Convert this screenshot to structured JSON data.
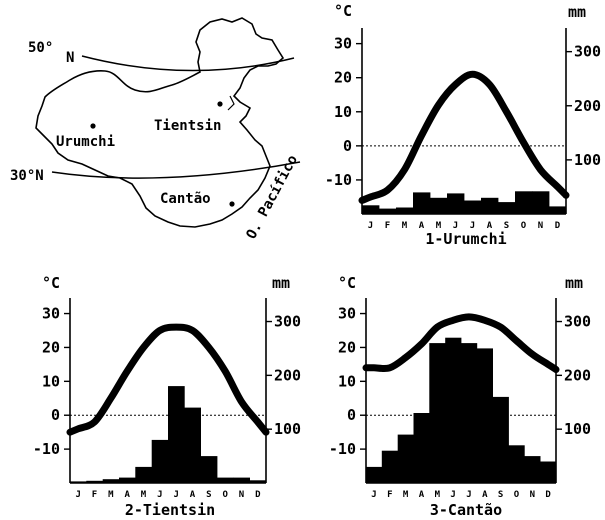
{
  "map": {
    "lat_north": "50°",
    "lat_north_n": "N",
    "lat_south": "30°N",
    "ocean": "O. Pacífico",
    "cities": [
      {
        "name": "Urumchi"
      },
      {
        "name": "Tientsin"
      },
      {
        "name": "Cantão"
      }
    ]
  },
  "chart_data": [
    {
      "type": "bar",
      "title": "1-Urumchi",
      "temp_unit": "°C",
      "precip_unit": "mm",
      "categories": [
        "J",
        "F",
        "M",
        "A",
        "M",
        "J",
        "J",
        "A",
        "S",
        "O",
        "N",
        "D"
      ],
      "temp_ticks": [
        30,
        20,
        10,
        0,
        -10
      ],
      "precip_ticks": [
        300,
        200,
        100
      ],
      "temp_range": [
        -20,
        34
      ],
      "precip_range": [
        0,
        340
      ],
      "temperature": [
        -15,
        -13,
        -7,
        3,
        12,
        18,
        21,
        18,
        10,
        1,
        -7,
        -12
      ],
      "precipitation": [
        16,
        10,
        12,
        40,
        30,
        38,
        25,
        30,
        22,
        42,
        42,
        14
      ]
    },
    {
      "type": "bar",
      "title": "2-Tientsin",
      "temp_unit": "°C",
      "precip_unit": "mm",
      "categories": [
        "J",
        "F",
        "M",
        "A",
        "M",
        "J",
        "J",
        "A",
        "S",
        "O",
        "N",
        "D"
      ],
      "temp_ticks": [
        30,
        20,
        10,
        0,
        -10
      ],
      "precip_ticks": [
        300,
        200,
        100
      ],
      "temp_range": [
        -20,
        34
      ],
      "precip_range": [
        0,
        340
      ],
      "temperature": [
        -4,
        -2,
        5,
        13,
        20,
        25,
        26,
        25,
        20,
        13,
        4,
        -2
      ],
      "precipitation": [
        3,
        4,
        7,
        10,
        30,
        80,
        180,
        140,
        50,
        10,
        10,
        5
      ]
    },
    {
      "type": "bar",
      "title": "3-Cantão",
      "temp_unit": "°C",
      "precip_unit": "mm",
      "categories": [
        "J",
        "F",
        "M",
        "A",
        "M",
        "J",
        "J",
        "A",
        "S",
        "O",
        "N",
        "D"
      ],
      "temp_ticks": [
        30,
        20,
        10,
        0,
        -10
      ],
      "precip_ticks": [
        300,
        200,
        100
      ],
      "temp_range": [
        -20,
        34
      ],
      "precip_range": [
        0,
        340
      ],
      "temperature": [
        14,
        14,
        17,
        21,
        26,
        28,
        29,
        28,
        26,
        22,
        18,
        15
      ],
      "precipitation": [
        30,
        60,
        90,
        130,
        260,
        270,
        260,
        250,
        160,
        70,
        50,
        40
      ]
    }
  ]
}
